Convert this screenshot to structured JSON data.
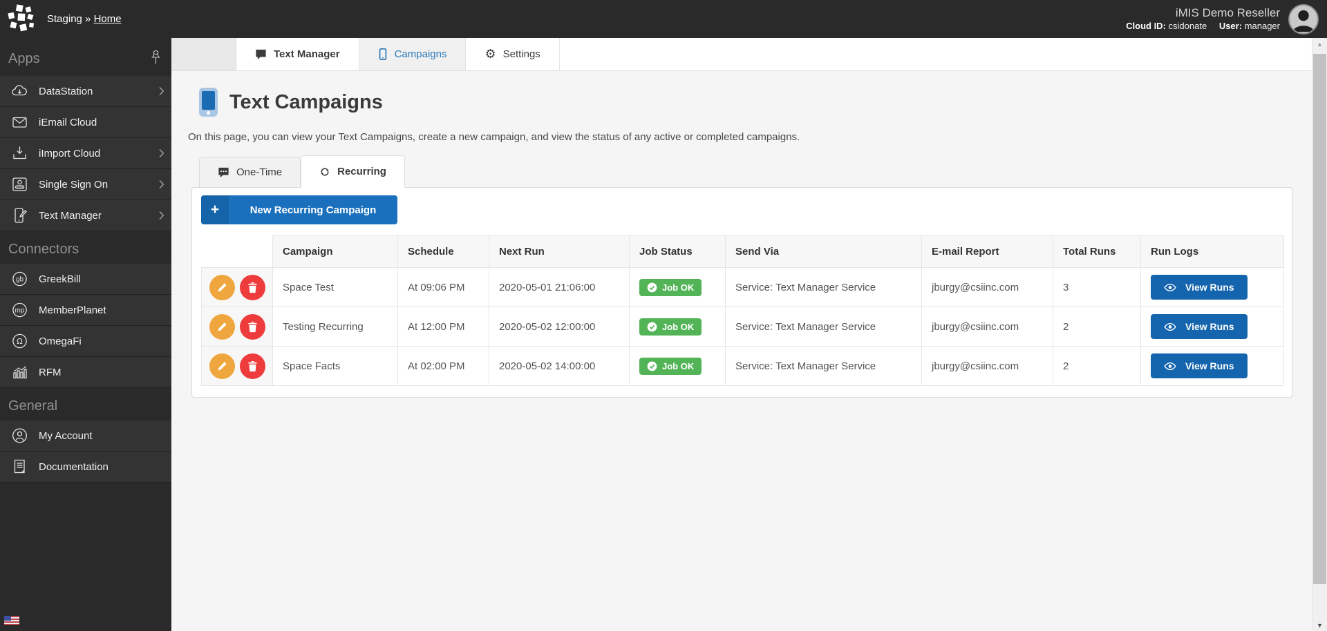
{
  "topbar": {
    "breadcrumb": {
      "app": "Staging",
      "separator": "»",
      "page": "Home"
    },
    "account_name": "iMIS Demo Reseller",
    "cloud_id_label": "Cloud ID:",
    "cloud_id_value": "csidonate",
    "user_label": "User:",
    "user_value": "manager"
  },
  "sidebar": {
    "sections": [
      {
        "title": "Apps",
        "pin": true,
        "items": [
          {
            "label": "DataStation",
            "icon": "datastation-icon",
            "expandable": true
          },
          {
            "label": "iEmail Cloud",
            "icon": "email-icon",
            "expandable": false
          },
          {
            "label": "iImport Cloud",
            "icon": "import-icon",
            "expandable": true
          },
          {
            "label": "Single Sign On",
            "icon": "id-card-icon",
            "expandable": true
          },
          {
            "label": "Text Manager",
            "icon": "phone-edit-icon",
            "expandable": true
          }
        ]
      },
      {
        "title": "Connectors",
        "pin": false,
        "items": [
          {
            "label": "GreekBill",
            "icon": "greekbill-icon",
            "expandable": false
          },
          {
            "label": "MemberPlanet",
            "icon": "memberplanet-icon",
            "expandable": false
          },
          {
            "label": "OmegaFi",
            "icon": "omegafi-icon",
            "expandable": false
          },
          {
            "label": "RFM",
            "icon": "rfm-icon",
            "expandable": false
          }
        ]
      },
      {
        "title": "General",
        "pin": false,
        "items": [
          {
            "label": "My Account",
            "icon": "my-account-icon",
            "expandable": false
          },
          {
            "label": "Documentation",
            "icon": "documentation-icon",
            "expandable": false
          }
        ]
      }
    ]
  },
  "tabs": [
    {
      "label": "Text Manager",
      "icon": "chat-icon",
      "active": false,
      "bold": true
    },
    {
      "label": "Campaigns",
      "icon": "phone-icon",
      "active": true,
      "bold": false
    },
    {
      "label": "Settings",
      "icon": "gear-icon",
      "active": false,
      "bold": false
    }
  ],
  "page": {
    "title": "Text Campaigns",
    "description": "On this page, you can view your Text Campaigns, create a new campaign, and view the status of any active or completed campaigns."
  },
  "subtabs": [
    {
      "label": "One-Time",
      "icon": "sms-icon",
      "active": false
    },
    {
      "label": "Recurring",
      "icon": "refresh-icon",
      "active": true
    }
  ],
  "panel": {
    "new_campaign_button": "New Recurring Campaign"
  },
  "table": {
    "headers": [
      "",
      "Campaign",
      "Schedule",
      "Next Run",
      "Job Status",
      "Send Via",
      "E-mail Report",
      "Total Runs",
      "Run Logs"
    ],
    "rows": [
      {
        "campaign": "Space Test",
        "schedule": "At 09:06 PM",
        "next_run": "2020-05-01 21:06:00",
        "job_status": "Job OK",
        "send_via": "Service: Text Manager Service",
        "email_report": "jburgy@csiinc.com",
        "total_runs": "3",
        "view_runs_label": "View Runs"
      },
      {
        "campaign": "Testing Recurring",
        "schedule": "At 12:00 PM",
        "next_run": "2020-05-02 12:00:00",
        "job_status": "Job OK",
        "send_via": "Service: Text Manager Service",
        "email_report": "jburgy@csiinc.com",
        "total_runs": "2",
        "view_runs_label": "View Runs"
      },
      {
        "campaign": "Space Facts",
        "schedule": "At 02:00 PM",
        "next_run": "2020-05-02 14:00:00",
        "job_status": "Job OK",
        "send_via": "Service: Text Manager Service",
        "email_report": "jburgy@csiinc.com",
        "total_runs": "2",
        "view_runs_label": "View Runs"
      }
    ]
  },
  "colors": {
    "primary_blue": "#1a70bd",
    "view_runs_blue": "#1565ae",
    "success_green": "#53b457",
    "warning_orange": "#f0a63e",
    "danger_red": "#ee3b3c",
    "link_blue": "#2a7ab9"
  }
}
